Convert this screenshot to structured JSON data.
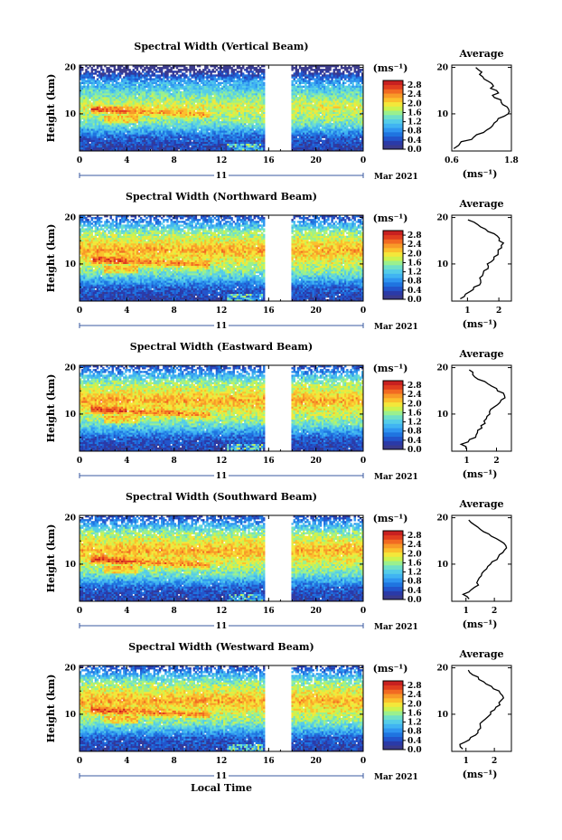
{
  "colors": {
    "colormap": [
      "#3a3a8c",
      "#2a3aa8",
      "#2255cc",
      "#1f74e0",
      "#2f95f0",
      "#40b4f2",
      "#55cde8",
      "#6fe0c8",
      "#9af08e",
      "#cdf24e",
      "#f4e73a",
      "#fbc02d",
      "#f89a28",
      "#f26a22",
      "#e03d1f",
      "#c82020"
    ],
    "gap": "#ffffff",
    "line": "#000000"
  },
  "chart_data": [
    {
      "type": "heatmap",
      "title": "Spectral Width (Vertical Beam)",
      "beam": "vertical",
      "xlabel": "",
      "ylabel": "Height (km)",
      "x_ticks": [
        "0",
        "4",
        "8",
        "12",
        "16",
        "20",
        "0"
      ],
      "xlim_hours": [
        0,
        24
      ],
      "y_ticks": [
        "10",
        "20"
      ],
      "ylim_km": [
        2,
        20.5
      ],
      "date_day": "11",
      "date_label": "Mar 2021",
      "data_gap_hours": [
        15.6,
        18.0
      ],
      "colorbar": {
        "unit": "(ms⁻¹)",
        "ticks": [
          "0.0",
          "0.4",
          "0.8",
          "1.2",
          "1.6",
          "2.0",
          "2.4",
          "2.8"
        ],
        "range": [
          0,
          3.0
        ]
      },
      "average_profile": {
        "title": "Average",
        "xlabel": "(ms⁻¹)",
        "x_ticks": [
          "0.6",
          "1.8"
        ],
        "xlim": [
          0.6,
          1.8
        ],
        "y_ticks": [
          "10",
          "20"
        ],
        "height_km": [
          2.5,
          4,
          5,
          6,
          7,
          8,
          9,
          10,
          11,
          12,
          13,
          14,
          15,
          16,
          17,
          18,
          19,
          20
        ],
        "width_ms": [
          0.65,
          0.8,
          1.05,
          1.25,
          1.38,
          1.45,
          1.55,
          1.7,
          1.72,
          1.6,
          1.55,
          1.45,
          1.5,
          1.4,
          1.3,
          1.25,
          1.2,
          1.05
        ]
      }
    },
    {
      "type": "heatmap",
      "title": "Spectral Width (Northward Beam)",
      "beam": "north",
      "xlabel": "",
      "ylabel": "Height (km)",
      "x_ticks": [
        "0",
        "4",
        "8",
        "12",
        "16",
        "20",
        "0"
      ],
      "xlim_hours": [
        0,
        24
      ],
      "y_ticks": [
        "10",
        "20"
      ],
      "ylim_km": [
        2,
        20.5
      ],
      "date_day": "11",
      "date_label": "Mar 2021",
      "data_gap_hours": [
        15.6,
        18.0
      ],
      "colorbar": {
        "unit": "(ms⁻¹)",
        "ticks": [
          "0.0",
          "0.4",
          "0.8",
          "1.2",
          "1.6",
          "2.0",
          "2.4",
          "2.8"
        ],
        "range": [
          0,
          3.0
        ]
      },
      "average_profile": {
        "title": "Average",
        "xlabel": "(ms⁻¹)",
        "x_ticks": [
          "1",
          "2"
        ],
        "xlim": [
          0.5,
          2.4
        ],
        "y_ticks": [
          "10",
          "20"
        ],
        "height_km": [
          2.5,
          3.5,
          4.5,
          5.5,
          6.5,
          7.5,
          8.5,
          9.5,
          10.5,
          11.5,
          12.5,
          13.5,
          14.5,
          15.5,
          16.5,
          17.5,
          18.5,
          19.5
        ],
        "width_ms": [
          0.8,
          0.9,
          1.15,
          1.35,
          1.4,
          1.45,
          1.55,
          1.65,
          1.75,
          1.85,
          2.0,
          2.1,
          2.15,
          2.0,
          1.85,
          1.55,
          1.3,
          1.0
        ]
      }
    },
    {
      "type": "heatmap",
      "title": "Spectral Width (Eastward Beam)",
      "beam": "east",
      "xlabel": "",
      "ylabel": "Height (km)",
      "x_ticks": [
        "0",
        "4",
        "8",
        "12",
        "16",
        "20",
        "0"
      ],
      "xlim_hours": [
        0,
        24
      ],
      "y_ticks": [
        "10",
        "20"
      ],
      "ylim_km": [
        2,
        20.5
      ],
      "date_day": "11",
      "date_label": "Mar 2021",
      "data_gap_hours": [
        15.6,
        18.0
      ],
      "colorbar": {
        "unit": "(ms⁻¹)",
        "ticks": [
          "0.0",
          "0.4",
          "0.8",
          "1.2",
          "1.6",
          "2.0",
          "2.4",
          "2.8"
        ],
        "range": [
          0,
          3.0
        ]
      },
      "average_profile": {
        "title": "Average",
        "xlabel": "(ms⁻¹)",
        "x_ticks": [
          "1",
          "2"
        ],
        "xlim": [
          0.5,
          2.5
        ],
        "y_ticks": [
          "10",
          "20"
        ],
        "height_km": [
          2.5,
          3.5,
          4.5,
          5.5,
          6.5,
          7.5,
          8.5,
          9.5,
          10.5,
          11.5,
          12.5,
          13.5,
          14.5,
          15.5,
          16.5,
          17.5,
          18.5,
          19.5
        ],
        "width_ms": [
          1.0,
          0.85,
          1.1,
          1.35,
          1.4,
          1.5,
          1.6,
          1.7,
          1.8,
          1.95,
          2.1,
          2.25,
          2.2,
          2.0,
          1.7,
          1.4,
          1.2,
          1.1
        ]
      }
    },
    {
      "type": "heatmap",
      "title": "Spectral Width (Southward Beam)",
      "beam": "south",
      "xlabel": "",
      "ylabel": "Height (km)",
      "x_ticks": [
        "0",
        "4",
        "8",
        "12",
        "16",
        "20",
        "0"
      ],
      "xlim_hours": [
        0,
        24
      ],
      "y_ticks": [
        "10",
        "20"
      ],
      "ylim_km": [
        2,
        20.5
      ],
      "date_day": "11",
      "date_label": "Mar 2021",
      "data_gap_hours": [
        15.6,
        18.0
      ],
      "colorbar": {
        "unit": "(ms⁻¹)",
        "ticks": [
          "0.0",
          "0.4",
          "0.8",
          "1.2",
          "1.6",
          "2.0",
          "2.4",
          "2.8"
        ],
        "range": [
          0,
          3.0
        ]
      },
      "average_profile": {
        "title": "Average",
        "xlabel": "(ms⁻¹)",
        "x_ticks": [
          "1",
          "2"
        ],
        "xlim": [
          0.5,
          2.6
        ],
        "y_ticks": [
          "10",
          "20"
        ],
        "height_km": [
          2.5,
          3.5,
          4.5,
          5.5,
          6.5,
          7.5,
          8.5,
          9.5,
          10.5,
          11.5,
          12.5,
          13.5,
          14.5,
          15.5,
          16.5,
          17.5,
          18.5,
          19.5
        ],
        "width_ms": [
          1.1,
          0.9,
          1.2,
          1.4,
          1.45,
          1.55,
          1.65,
          1.8,
          1.95,
          2.1,
          2.3,
          2.4,
          2.3,
          2.1,
          1.8,
          1.5,
          1.3,
          1.1
        ]
      }
    },
    {
      "type": "heatmap",
      "title": "Spectral Width (Westward Beam)",
      "beam": "west",
      "xlabel": "Local Time",
      "ylabel": "Height (km)",
      "x_ticks": [
        "0",
        "4",
        "8",
        "12",
        "16",
        "20",
        "0"
      ],
      "xlim_hours": [
        0,
        24
      ],
      "y_ticks": [
        "10",
        "20"
      ],
      "ylim_km": [
        2,
        20.5
      ],
      "date_day": "11",
      "date_label": "Mar 2021",
      "data_gap_hours": [
        15.6,
        18.0
      ],
      "colorbar": {
        "unit": "(ms⁻¹)",
        "ticks": [
          "0.0",
          "0.4",
          "0.8",
          "1.2",
          "1.6",
          "2.0",
          "2.4",
          "2.8"
        ],
        "range": [
          0,
          3.0
        ]
      },
      "average_profile": {
        "title": "Average",
        "xlabel": "(ms⁻¹)",
        "x_ticks": [
          "1",
          "2"
        ],
        "xlim": [
          0.5,
          2.6
        ],
        "y_ticks": [
          "10",
          "20"
        ],
        "height_km": [
          2.5,
          3.5,
          4.5,
          5.5,
          6.5,
          7.5,
          8.5,
          9.5,
          10.5,
          11.5,
          12.5,
          13.5,
          14.5,
          15.5,
          16.5,
          17.5,
          18.5,
          19.5
        ],
        "width_ms": [
          0.9,
          0.8,
          1.1,
          1.3,
          1.4,
          1.5,
          1.6,
          1.75,
          1.9,
          2.05,
          2.2,
          2.35,
          2.2,
          2.0,
          1.7,
          1.45,
          1.25,
          1.05
        ]
      }
    }
  ]
}
